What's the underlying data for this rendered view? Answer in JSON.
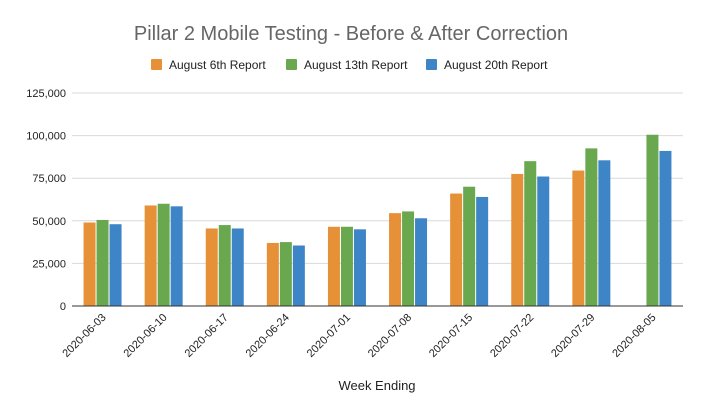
{
  "chart_data": {
    "type": "bar",
    "title": "Pillar 2 Mobile Testing - Before & After Correction",
    "xlabel": "Week Ending",
    "ylabel": "",
    "ylim": [
      0,
      125000
    ],
    "yticks": [
      0,
      25000,
      50000,
      75000,
      100000,
      125000
    ],
    "ytick_labels": [
      "0",
      "25,000",
      "50,000",
      "75,000",
      "100,000",
      "125,000"
    ],
    "grid": true,
    "legend_position": "top",
    "categories": [
      "2020-06-03",
      "2020-06-10",
      "2020-06-17",
      "2020-06-24",
      "2020-07-01",
      "2020-07-08",
      "2020-07-15",
      "2020-07-22",
      "2020-07-29",
      "2020-08-05"
    ],
    "series": [
      {
        "name": "August 6th Report",
        "color": "#e69138",
        "values": [
          49000,
          59000,
          45500,
          37000,
          46500,
          54500,
          66000,
          77500,
          79500,
          null
        ]
      },
      {
        "name": "August 13th Report",
        "color": "#6aa84f",
        "values": [
          50500,
          60000,
          47500,
          37500,
          46500,
          55500,
          70000,
          85000,
          92500,
          100500
        ]
      },
      {
        "name": "August 20th Report",
        "color": "#3d85c6",
        "values": [
          48000,
          58500,
          45500,
          35500,
          45000,
          51500,
          64000,
          76000,
          85500,
          91000
        ]
      }
    ]
  }
}
